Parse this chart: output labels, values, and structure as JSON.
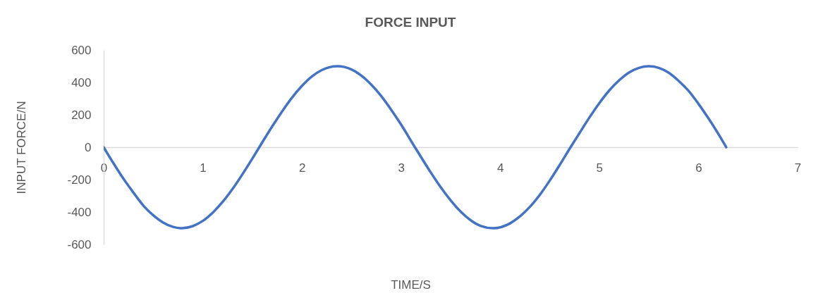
{
  "chart_data": {
    "type": "line",
    "title": "FORCE INPUT",
    "xlabel": "TIME/S",
    "ylabel": "INPUT FORCE/N",
    "x": [
      0,
      0.1,
      0.2,
      0.3,
      0.4,
      0.5,
      0.6,
      0.7,
      0.79,
      0.9,
      1.0,
      1.1,
      1.2,
      1.3,
      1.4,
      1.5,
      1.57,
      1.7,
      1.8,
      1.9,
      2.0,
      2.1,
      2.2,
      2.36,
      2.5,
      2.6,
      2.7,
      2.8,
      2.9,
      3.0,
      3.14,
      3.3,
      3.4,
      3.5,
      3.6,
      3.7,
      3.8,
      3.93,
      4.1,
      4.2,
      4.3,
      4.4,
      4.5,
      4.6,
      4.71,
      4.8,
      4.9,
      5.0,
      5.1,
      5.2,
      5.3,
      5.4,
      5.5,
      5.6,
      5.7,
      5.8,
      5.9,
      6.0,
      6.1,
      6.2,
      6.28
    ],
    "series": [
      {
        "color": "#4472c4",
        "values": [
          0,
          -100,
          -195,
          -280,
          -360,
          -420,
          -465,
          -492,
          -500,
          -487,
          -455,
          -404,
          -338,
          -258,
          -167,
          -70,
          0,
          128,
          221,
          306,
          378,
          436,
          476,
          500,
          480,
          442,
          386,
          316,
          232,
          140,
          0,
          -156,
          -247,
          -328,
          -397,
          -450,
          -485,
          -500,
          -470,
          -427,
          -368,
          -294,
          -206,
          -110,
          0,
          87,
          183,
          272,
          350,
          413,
          461,
          490,
          500,
          490,
          460,
          410,
          348,
          268,
          179,
          83,
          0
        ]
      }
    ],
    "xlim": [
      0,
      7
    ],
    "xticks": [
      0,
      1,
      2,
      3,
      4,
      5,
      6,
      7
    ],
    "ylim": [
      -600,
      600
    ],
    "yticks": [
      -600,
      -400,
      -200,
      0,
      200,
      400,
      600
    ],
    "marker": "none",
    "line_style": "solid"
  }
}
